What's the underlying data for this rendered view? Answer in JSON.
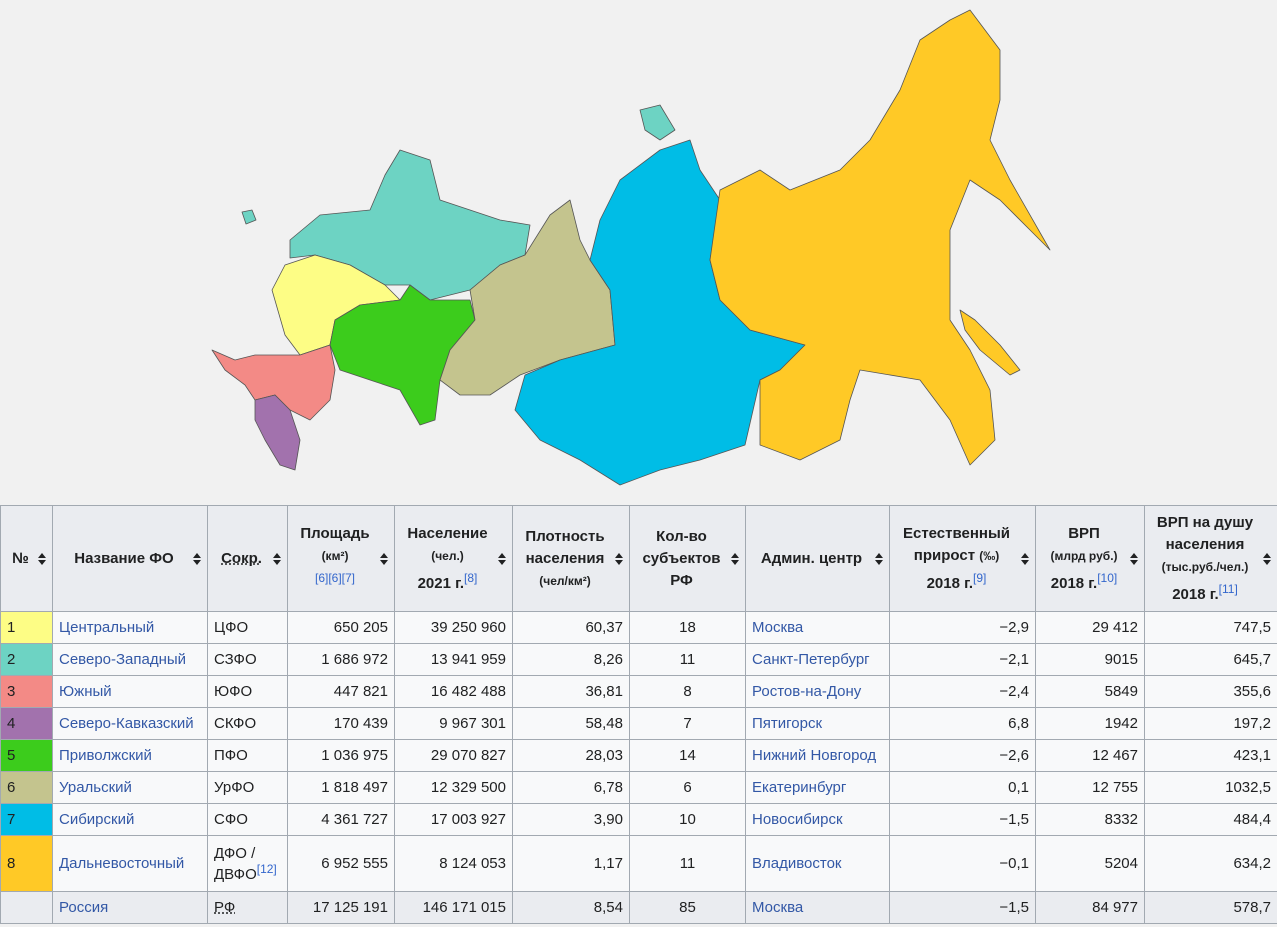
{
  "table": {
    "headers": [
      {
        "title": "№"
      },
      {
        "title": "Название ФО"
      },
      {
        "title": "Сокр."
      },
      {
        "title": "Площадь",
        "unit": "(км²)",
        "refs": "[6][6][7]"
      },
      {
        "title": "Население",
        "unit": "(чел.)",
        "year": "2021 г.",
        "refs": "[8]"
      },
      {
        "title": "Плотность населения",
        "unit": "(чел/км²)"
      },
      {
        "title": "Кол-во субъектов РФ"
      },
      {
        "title": "Админ. центр"
      },
      {
        "title": "Естественный прирост",
        "unit": "(‰)",
        "year": "2018 г.",
        "refs": "[9]"
      },
      {
        "title": "ВРП",
        "unit": "(млрд руб.)",
        "year": "2018 г.",
        "refs": "[10]"
      },
      {
        "title": "ВРП на душу населения",
        "unit": "(тыс.руб./чел.)",
        "year": "2018 г.",
        "refs": "[11]"
      }
    ],
    "rows": [
      {
        "color": "#fdfd85",
        "no": "1",
        "name": "Центральный",
        "abbr": "ЦФО",
        "area": "650 205",
        "population": "39 250 960",
        "density": "60,37",
        "subjects": "18",
        "center": "Москва",
        "growth": "−2,9",
        "grp": "29 412",
        "grp_pc": "747,5"
      },
      {
        "color": "#6dd3c3",
        "no": "2",
        "name": "Северо-Западный",
        "abbr": "СЗФО",
        "area": "1 686 972",
        "population": "13 941 959",
        "density": "8,26",
        "subjects": "11",
        "center": "Санкт-Петербург",
        "growth": "−2,1",
        "grp": "9015",
        "grp_pc": "645,7"
      },
      {
        "color": "#f38a86",
        "no": "3",
        "name": "Южный",
        "abbr": "ЮФО",
        "area": "447 821",
        "population": "16 482 488",
        "density": "36,81",
        "subjects": "8",
        "center": "Ростов-на-Дону",
        "growth": "−2,4",
        "grp": "5849",
        "grp_pc": "355,6"
      },
      {
        "color": "#a272ad",
        "no": "4",
        "name": "Северо-Кавказский",
        "abbr": "СКФО",
        "area": "170 439",
        "population": "9 967 301",
        "density": "58,48",
        "subjects": "7",
        "center": "Пятигорск",
        "growth": "6,8",
        "grp": "1942",
        "grp_pc": "197,2"
      },
      {
        "color": "#3ccc1c",
        "no": "5",
        "name": "Приволжский",
        "abbr": "ПФО",
        "area": "1 036 975",
        "population": "29 070 827",
        "density": "28,03",
        "subjects": "14",
        "center": "Нижний Новгород",
        "growth": "−2,6",
        "grp": "12 467",
        "grp_pc": "423,1"
      },
      {
        "color": "#c4c48e",
        "no": "6",
        "name": "Уральский",
        "abbr": "УрФО",
        "area": "1 818 497",
        "population": "12 329 500",
        "density": "6,78",
        "subjects": "6",
        "center": "Екатеринбург",
        "growth": "0,1",
        "grp": "12 755",
        "grp_pc": "1032,5"
      },
      {
        "color": "#00bde6",
        "no": "7",
        "name": "Сибирский",
        "abbr": "СФО",
        "area": "4 361 727",
        "population": "17 003 927",
        "density": "3,90",
        "subjects": "10",
        "center": "Новосибирск",
        "growth": "−1,5",
        "grp": "8332",
        "grp_pc": "484,4"
      },
      {
        "color": "#ffc926",
        "no": "8",
        "name": "Дальневосточный",
        "abbr": "ДФО / ДВФО",
        "abbr_ref": "[12]",
        "area": "6 952 555",
        "population": "8 124 053",
        "density": "1,17",
        "subjects": "11",
        "center": "Владивосток",
        "growth": "−0,1",
        "grp": "5204",
        "grp_pc": "634,2"
      }
    ],
    "total": {
      "name": "Россия",
      "abbr": "РФ",
      "area": "17 125 191",
      "population": "146 171 015",
      "density": "8,54",
      "subjects": "85",
      "center": "Москва",
      "growth": "−1,5",
      "grp": "84 977",
      "grp_pc": "578,7"
    }
  }
}
